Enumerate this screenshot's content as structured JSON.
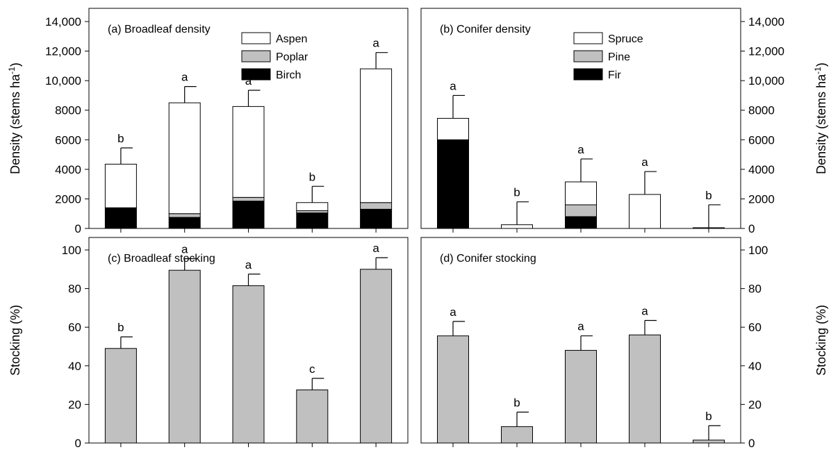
{
  "chart_data": [
    {
      "type": "bar",
      "stacked": true,
      "title": "(a) Broadleaf density",
      "ylabel": "Density (stems ha",
      "ylabel_sup": "-1",
      "ylabel_close": ")",
      "ylim": [
        0,
        14000
      ],
      "yticks": [
        "0",
        "2000",
        "4000",
        "6000",
        "8000",
        "10,000",
        "12,000",
        "14,000"
      ],
      "ytick_values": [
        0,
        2000,
        4000,
        6000,
        8000,
        10000,
        12000,
        14000
      ],
      "axis_side": "left",
      "legend_position": "top-right",
      "categories": [
        "",
        "",
        "",
        "",
        ""
      ],
      "series": [
        {
          "name": "Birch",
          "color": "#000000",
          "values": [
            1400,
            750,
            1850,
            1050,
            1300
          ]
        },
        {
          "name": "Poplar",
          "color": "#c0c0c0",
          "values": [
            0,
            250,
            250,
            150,
            450
          ]
        },
        {
          "name": "Aspen",
          "color": "#ffffff",
          "values": [
            2950,
            7500,
            6150,
            550,
            9050
          ]
        }
      ],
      "error_bars": [
        1100,
        1100,
        1100,
        1100,
        1100
      ],
      "letters": [
        "b",
        "a",
        "a",
        "b",
        "a"
      ],
      "legend_order": [
        "Aspen",
        "Poplar",
        "Birch"
      ]
    },
    {
      "type": "bar",
      "stacked": true,
      "title": "(b) Conifer density",
      "ylabel": "Density (stems ha",
      "ylabel_sup": "-1",
      "ylabel_close": ")",
      "ylim": [
        0,
        14000
      ],
      "yticks": [
        "0",
        "2000",
        "4000",
        "6000",
        "8000",
        "10,000",
        "12,000",
        "14,000"
      ],
      "ytick_values": [
        0,
        2000,
        4000,
        6000,
        8000,
        10000,
        12000,
        14000
      ],
      "axis_side": "right",
      "legend_position": "top-right",
      "categories": [
        "",
        "",
        "",
        "",
        ""
      ],
      "series": [
        {
          "name": "Fir",
          "color": "#000000",
          "values": [
            6000,
            0,
            800,
            0,
            0
          ]
        },
        {
          "name": "Pine",
          "color": "#c0c0c0",
          "values": [
            0,
            0,
            800,
            0,
            0
          ]
        },
        {
          "name": "Spruce",
          "color": "#ffffff",
          "values": [
            1450,
            250,
            1550,
            2300,
            50
          ]
        }
      ],
      "error_bars": [
        1550,
        1550,
        1550,
        1550,
        1550
      ],
      "letters": [
        "a",
        "b",
        "a",
        "a",
        "b"
      ],
      "legend_order": [
        "Spruce",
        "Pine",
        "Fir"
      ]
    },
    {
      "type": "bar",
      "title": "(c) Broadleaf stocking",
      "ylabel": "Stocking (%)",
      "ylim": [
        0,
        120
      ],
      "yticks": [
        "0",
        "20",
        "40",
        "60",
        "80",
        "100"
      ],
      "ytick_values": [
        0,
        20,
        40,
        60,
        80,
        100
      ],
      "axis_side": "left",
      "categories": [
        "",
        "",
        "",
        "",
        ""
      ],
      "series": [
        {
          "color": "#c0c0c0",
          "values": [
            49,
            89.5,
            81.5,
            27.5,
            90
          ]
        }
      ],
      "error_bars": [
        6,
        6,
        6,
        6,
        6
      ],
      "letters": [
        "b",
        "a",
        "a",
        "c",
        "a"
      ]
    },
    {
      "type": "bar",
      "title": "(d) Conifer stocking",
      "ylabel": "Stocking (%)",
      "ylim": [
        0,
        120
      ],
      "yticks": [
        "0",
        "20",
        "40",
        "60",
        "80",
        "100"
      ],
      "ytick_values": [
        0,
        20,
        40,
        60,
        80,
        100
      ],
      "axis_side": "right",
      "categories": [
        "",
        "",
        "",
        "",
        ""
      ],
      "series": [
        {
          "color": "#c0c0c0",
          "values": [
            55.5,
            8.5,
            48,
            56,
            1.5
          ]
        }
      ],
      "error_bars": [
        7.5,
        7.5,
        7.5,
        7.5,
        7.5
      ],
      "letters": [
        "a",
        "b",
        "a",
        "a",
        "b"
      ]
    }
  ]
}
